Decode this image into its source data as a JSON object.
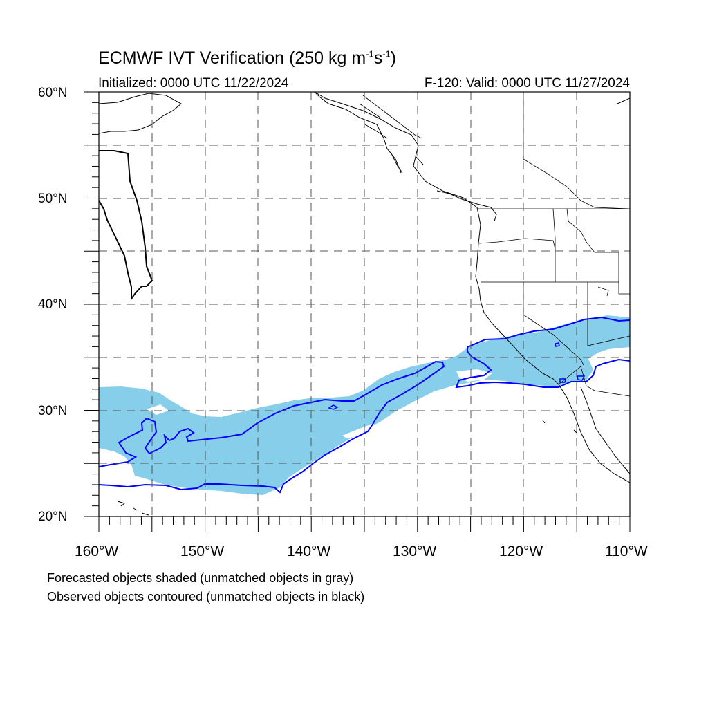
{
  "header": {
    "title_main": "ECMWF IVT Verification (250 kg m",
    "title_sup1": "-1",
    "title_mid": "s",
    "title_sup2": "-1",
    "title_end": ")",
    "initialized": "Initialized: 0000 UTC 11/22/2024",
    "valid": "F-120: Valid: 0000 UTC 11/27/2024"
  },
  "axes": {
    "lat_labels": [
      "60°N",
      "50°N",
      "40°N",
      "30°N",
      "20°N"
    ],
    "lon_labels": [
      "160°W",
      "150°W",
      "140°W",
      "130°W",
      "120°W",
      "110°W"
    ],
    "lat_range": [
      20,
      60
    ],
    "lon_range": [
      -160,
      -110
    ]
  },
  "notes": {
    "forecast": "Forecasted objects shaded (unmatched objects in gray)",
    "observed": "Observed objects contoured (unmatched objects in black)"
  },
  "colors": {
    "forecast_shade": "#87ceeb",
    "observed_contour": "#0000ff",
    "unmatched_contour": "#000000",
    "grid": "#555555"
  }
}
